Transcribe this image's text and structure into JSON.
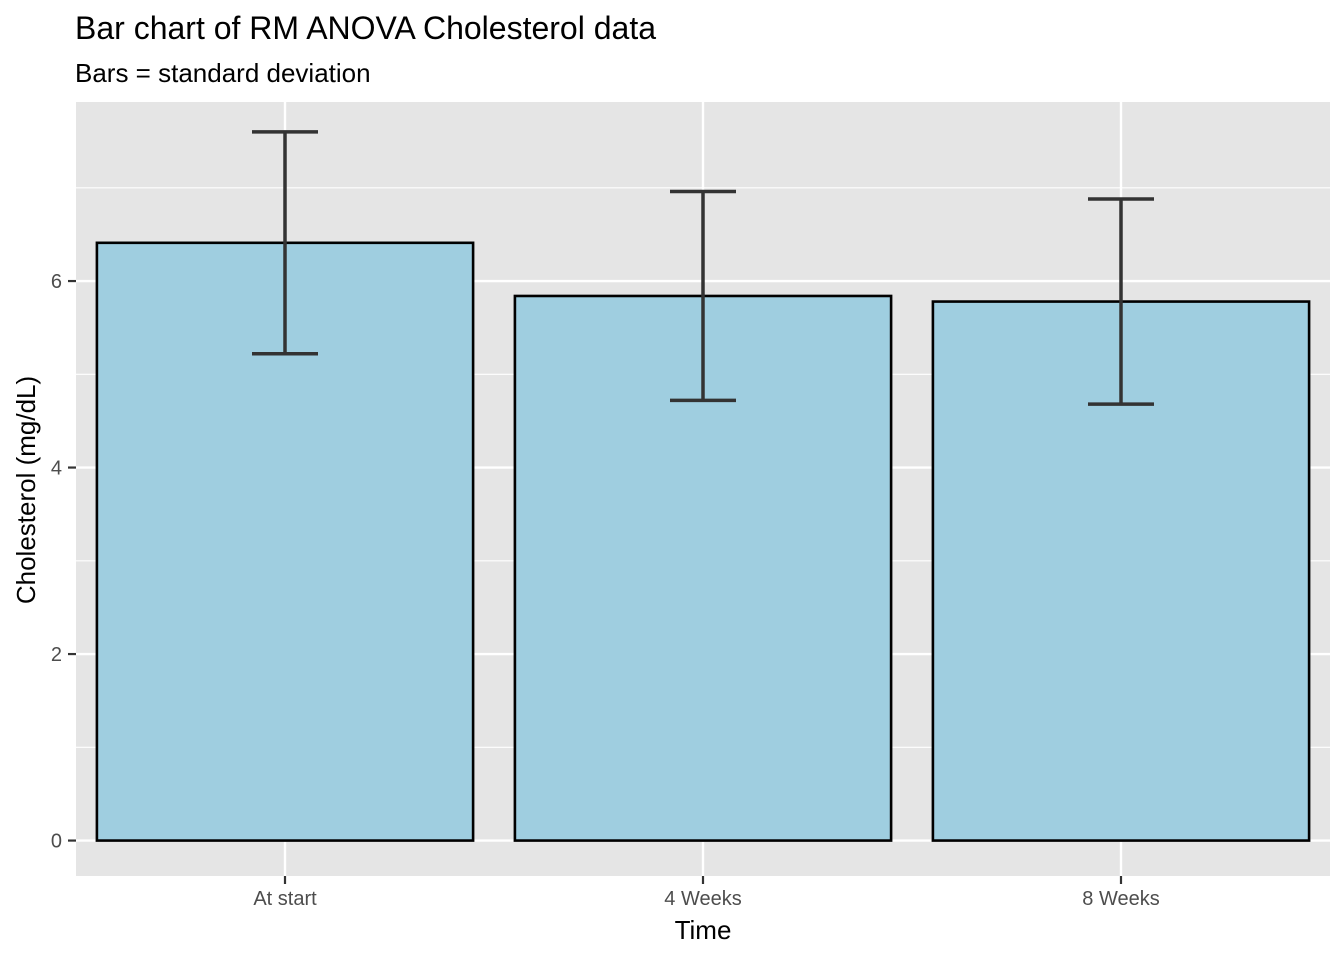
{
  "chart_data": {
    "type": "bar",
    "title": "Bar chart of RM ANOVA Cholesterol data",
    "subtitle": "Bars = standard deviation",
    "xlabel": "Time",
    "ylabel": "Cholesterol (mg/dL)",
    "categories": [
      "At start",
      "4 Weeks",
      "8 Weeks"
    ],
    "values": [
      6.41,
      5.84,
      5.78
    ],
    "error": {
      "lower": [
        5.22,
        4.72,
        4.68
      ],
      "upper": [
        7.6,
        6.96,
        6.88
      ]
    },
    "yticks": [
      0,
      2,
      4,
      6
    ],
    "ylim": [
      -0.38,
      7.92
    ],
    "grid": true,
    "legend": "none",
    "colors": {
      "panel_bg": "#e5e5e5",
      "grid": "#ffffff",
      "bar_fill": "#9fcee0",
      "bar_edge": "#000000",
      "errorbar": "#333333",
      "tick": "#333333",
      "tick_label": "#4d4d4d"
    }
  }
}
